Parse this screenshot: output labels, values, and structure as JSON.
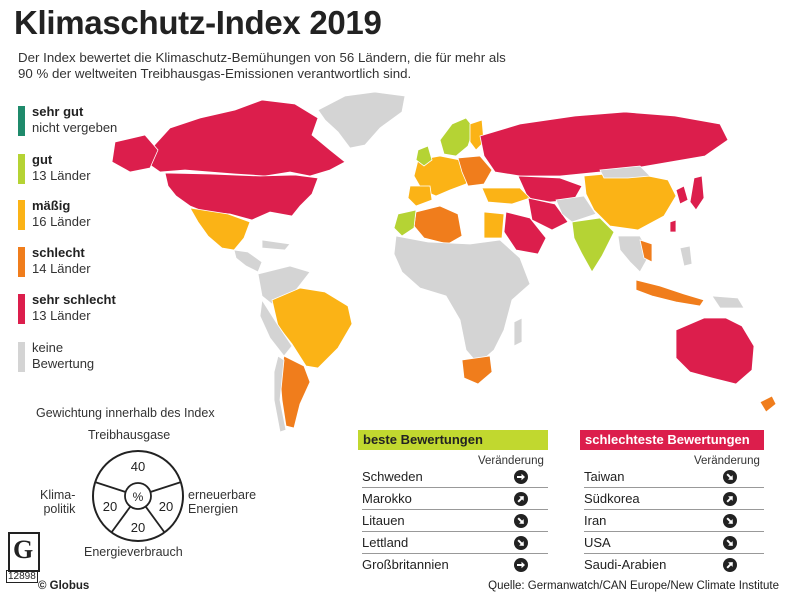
{
  "title": "Klimaschutz-Index 2019",
  "subtitle": "Der Index bewertet die Klimaschutz-Bemühungen von 56 Ländern, die für mehr als 90 % der weltweiten Treibhausgas-Emissionen verantwortlich sind.",
  "colors": {
    "sehr_gut": "#1f8a6b",
    "gut": "#b5d334",
    "maessig": "#fbb316",
    "schlecht": "#f07d1c",
    "sehr_schlecht": "#dc1e4c",
    "keine": "#d4d4d4"
  },
  "legend": [
    {
      "label": "sehr gut",
      "sub": "nicht vergeben",
      "color": "#1f8a6b"
    },
    {
      "label": "gut",
      "sub": "13 Länder",
      "color": "#b5d334"
    },
    {
      "label": "mäßig",
      "sub": "16 Länder",
      "color": "#fbb316"
    },
    {
      "label": "schlecht",
      "sub": "14 Länder",
      "color": "#f07d1c"
    },
    {
      "label": "sehr schlecht",
      "sub": "13 Länder",
      "color": "#dc1e4c"
    },
    {
      "label": "keine",
      "sub": "Bewertung",
      "color": "#d4d4d4"
    }
  ],
  "weighting": {
    "caption": "Gewichtung innerhalb des Index",
    "center": "%",
    "segments": [
      {
        "label": "Treibhausgase",
        "value": 40
      },
      {
        "label": "erneuerbare Energien",
        "label_line1": "erneuerbare",
        "label_line2": "Energien",
        "value": 20
      },
      {
        "label": "Energieverbrauch",
        "value": 20
      },
      {
        "label": "Klima-politik",
        "label_line1": "Klima-",
        "label_line2": "politik",
        "value": 20
      }
    ]
  },
  "best": {
    "header": "beste Bewertungen",
    "change_label": "Veränderung",
    "color": "#c1d82f",
    "items": [
      {
        "name": "Schweden",
        "trend": "right"
      },
      {
        "name": "Marokko",
        "trend": "up-right"
      },
      {
        "name": "Litauen",
        "trend": "down-right"
      },
      {
        "name": "Lettland",
        "trend": "down-right"
      },
      {
        "name": "Großbritannien",
        "trend": "right"
      }
    ]
  },
  "worst": {
    "header": "schlechteste Bewertungen",
    "change_label": "Veränderung",
    "color": "#dc1e4c",
    "items": [
      {
        "name": "Taiwan",
        "trend": "down-right"
      },
      {
        "name": "Südkorea",
        "trend": "up-right"
      },
      {
        "name": "Iran",
        "trend": "down-right"
      },
      {
        "name": "USA",
        "trend": "down-right"
      },
      {
        "name": "Saudi-Arabien",
        "trend": "up-right"
      }
    ]
  },
  "logo": {
    "letter": "G",
    "number": "12898"
  },
  "copyright": "© Globus",
  "source": "Quelle: Germanwatch/CAN Europe/New Climate Institute"
}
